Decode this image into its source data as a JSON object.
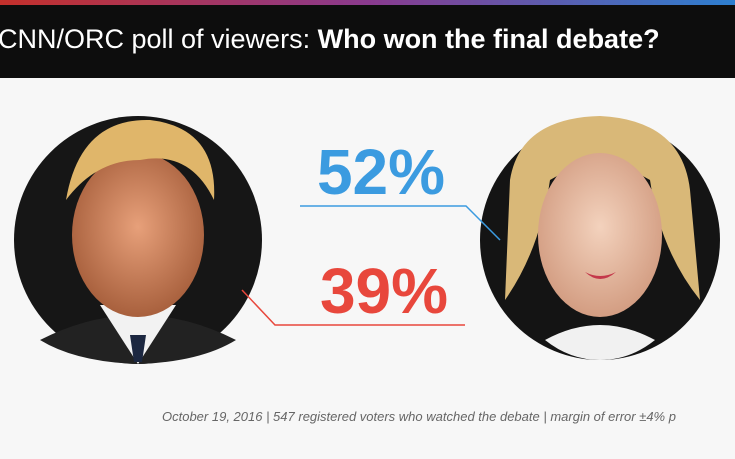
{
  "header": {
    "title_lead": "CNN/ORC poll of viewers:",
    "title_question": "Who won the final debate?"
  },
  "results": [
    {
      "label": "52%",
      "color": "#3b9be0"
    },
    {
      "label": "39%",
      "color": "#e8473c"
    }
  ],
  "footnote": "October 19, 2016 | 547 registered voters who watched the debate | margin of error ±4% p"
}
